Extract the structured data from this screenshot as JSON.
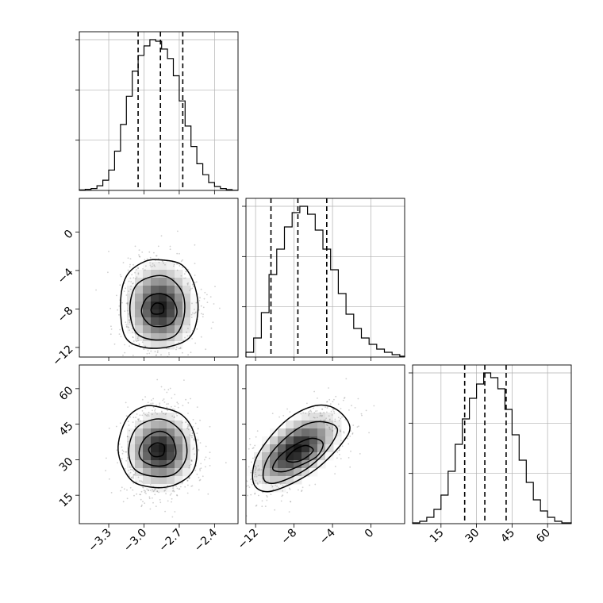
{
  "chart_data": {
    "type": "corner",
    "parameters": [
      {
        "name": "",
        "range": [
          -3.55,
          -2.2
        ],
        "ticks": [
          -3.3,
          -3.0,
          -2.7,
          -2.4
        ],
        "tick_labels": [
          "−3.3",
          "−3.0",
          "−2.7",
          "−2.4"
        ]
      },
      {
        "name": "",
        "range": [
          -13.0,
          3.5
        ],
        "ticks": [
          -12,
          -8,
          -4,
          0
        ],
        "tick_labels": [
          "−12",
          "−8",
          "−4",
          "0"
        ]
      },
      {
        "name": "",
        "range": [
          3.0,
          70.0
        ],
        "ticks": [
          15,
          30,
          45,
          60
        ],
        "tick_labels": [
          "15",
          "30",
          "45",
          "60"
        ]
      }
    ],
    "marginals": [
      {
        "parameter": 0,
        "bins": [
          -3.55,
          -3.5,
          -3.45,
          -3.4,
          -3.35,
          -3.3,
          -3.25,
          -3.2,
          -3.15,
          -3.1,
          -3.05,
          -3.0,
          -2.95,
          -2.9,
          -2.85,
          -2.8,
          -2.75,
          -2.7,
          -2.65,
          -2.6,
          -2.55,
          -2.5,
          -2.45,
          -2.4,
          -2.35,
          -2.3,
          -2.25,
          -2.2
        ],
        "counts": [
          0.3,
          0.7,
          1.2,
          3,
          6.5,
          13,
          25,
          42,
          60,
          76,
          86,
          92,
          96,
          95,
          90,
          84,
          73,
          57,
          41,
          28,
          17,
          10,
          5,
          2.5,
          1.2,
          0.5,
          0.1
        ],
        "quantiles": [
          -3.05,
          -2.86,
          -2.67
        ]
      },
      {
        "parameter": 1,
        "bins": [
          -13.0,
          -12.2,
          -11.4,
          -10.6,
          -9.8,
          -9.0,
          -8.2,
          -7.4,
          -6.6,
          -5.8,
          -5.0,
          -4.2,
          -3.4,
          -2.6,
          -1.8,
          -1.0,
          -0.2,
          0.6,
          1.4,
          2.2,
          3.0,
          3.5
        ],
        "counts": [
          3,
          12,
          28,
          52,
          68,
          82,
          91,
          95,
          90,
          80,
          68,
          55,
          40,
          27,
          18,
          12,
          8,
          5,
          3,
          1.5,
          0.5
        ],
        "quantiles": [
          -10.4,
          -7.6,
          -4.6
        ]
      },
      {
        "parameter": 2,
        "bins": [
          3,
          6,
          9,
          12,
          15,
          18,
          21,
          24,
          27,
          30,
          33,
          36,
          39,
          42,
          45,
          48,
          51,
          54,
          57,
          60,
          63,
          66,
          70
        ],
        "counts": [
          0.5,
          1.5,
          4,
          9,
          18,
          33,
          50,
          66,
          79,
          88,
          95,
          92,
          85,
          72,
          56,
          40,
          26,
          15,
          8,
          4,
          1.5,
          0.5
        ],
        "quantiles": [
          25,
          33.5,
          42.5
        ]
      }
    ],
    "joint": [
      {
        "x": 0,
        "y": 1,
        "contours": [
          {
            "level": 1,
            "points": [
              [
                -3.2,
                -7.5
              ],
              [
                -3.15,
                -4.6
              ],
              [
                -3.0,
                -3.1
              ],
              [
                -2.85,
                -2.9
              ],
              [
                -2.68,
                -3.4
              ],
              [
                -2.58,
                -5.2
              ],
              [
                -2.54,
                -8.0
              ],
              [
                -2.6,
                -10.8
              ],
              [
                -2.78,
                -11.9
              ],
              [
                -3.0,
                -12.0
              ],
              [
                -3.16,
                -10.9
              ]
            ]
          },
          {
            "level": 2,
            "points": [
              [
                -3.12,
                -8.0
              ],
              [
                -3.07,
                -5.6
              ],
              [
                -2.92,
                -4.6
              ],
              [
                -2.78,
                -4.8
              ],
              [
                -2.67,
                -6.4
              ],
              [
                -2.66,
                -8.8
              ],
              [
                -2.74,
                -10.8
              ],
              [
                -2.92,
                -11.2
              ],
              [
                -3.07,
                -10.4
              ]
            ]
          },
          {
            "level": 3,
            "points": [
              [
                -3.02,
                -8.0
              ],
              [
                -2.97,
                -6.8
              ],
              [
                -2.86,
                -6.4
              ],
              [
                -2.76,
                -7.0
              ],
              [
                -2.72,
                -8.4
              ],
              [
                -2.78,
                -9.6
              ],
              [
                -2.92,
                -9.8
              ],
              [
                -3.0,
                -9.0
              ]
            ]
          },
          {
            "level": 4,
            "points": [
              [
                -2.94,
                -8.0
              ],
              [
                -2.9,
                -7.4
              ],
              [
                -2.84,
                -7.6
              ],
              [
                -2.84,
                -8.4
              ],
              [
                -2.92,
                -8.5
              ]
            ]
          }
        ]
      },
      {
        "x": 0,
        "y": 2,
        "contours": [
          {
            "level": 1,
            "points": [
              [
                -3.22,
                34
              ],
              [
                -3.15,
                47
              ],
              [
                -3.0,
                52.5
              ],
              [
                -2.85,
                52
              ],
              [
                -2.68,
                49
              ],
              [
                -2.58,
                42
              ],
              [
                -2.55,
                32
              ],
              [
                -2.6,
                24
              ],
              [
                -2.76,
                19
              ],
              [
                -2.95,
                18.5
              ],
              [
                -3.12,
                22
              ]
            ]
          },
          {
            "level": 2,
            "points": [
              [
                -3.13,
                34
              ],
              [
                -3.07,
                43
              ],
              [
                -2.92,
                47
              ],
              [
                -2.78,
                46
              ],
              [
                -2.66,
                40
              ],
              [
                -2.64,
                31
              ],
              [
                -2.74,
                24
              ],
              [
                -2.92,
                23
              ],
              [
                -3.08,
                26
              ]
            ]
          },
          {
            "level": 3,
            "points": [
              [
                -3.04,
                34
              ],
              [
                -2.98,
                39.5
              ],
              [
                -2.86,
                42
              ],
              [
                -2.76,
                39
              ],
              [
                -2.73,
                32
              ],
              [
                -2.8,
                28
              ],
              [
                -2.92,
                27.5
              ],
              [
                -3.02,
                30
              ]
            ]
          },
          {
            "level": 4,
            "points": [
              [
                -2.96,
                34.5
              ],
              [
                -2.9,
                37
              ],
              [
                -2.83,
                36
              ],
              [
                -2.84,
                32
              ],
              [
                -2.92,
                31.5
              ]
            ]
          }
        ]
      },
      {
        "x": 1,
        "y": 2,
        "contours": [
          {
            "level": 1,
            "points": [
              [
                -12.2,
                20
              ],
              [
                -12.0,
                30
              ],
              [
                -10.2,
                41
              ],
              [
                -8.0,
                49
              ],
              [
                -5.5,
                53
              ],
              [
                -3.5,
                51
              ],
              [
                -2.2,
                44
              ],
              [
                -3.0,
                37
              ],
              [
                -5.4,
                27
              ],
              [
                -8.2,
                20
              ],
              [
                -10.8,
                16.5
              ]
            ]
          },
          {
            "level": 2,
            "points": [
              [
                -11.2,
                22.5
              ],
              [
                -10.8,
                30
              ],
              [
                -9.2,
                38
              ],
              [
                -7.0,
                44.5
              ],
              [
                -5.0,
                46
              ],
              [
                -3.5,
                43
              ],
              [
                -4.4,
                35
              ],
              [
                -6.4,
                27
              ],
              [
                -8.6,
                22
              ],
              [
                -10.4,
                20
              ]
            ]
          },
          {
            "level": 3,
            "points": [
              [
                -10.2,
                26
              ],
              [
                -9.6,
                31
              ],
              [
                -8.0,
                36
              ],
              [
                -6.2,
                39
              ],
              [
                -5.0,
                37
              ],
              [
                -5.6,
                31.5
              ],
              [
                -7.4,
                27.5
              ],
              [
                -9.0,
                25
              ]
            ]
          },
          {
            "level": 4,
            "points": [
              [
                -8.8,
                30
              ],
              [
                -8.0,
                34
              ],
              [
                -6.8,
                36
              ],
              [
                -6.0,
                34
              ],
              [
                -6.9,
                30.5
              ],
              [
                -8.0,
                29
              ]
            ]
          }
        ]
      }
    ],
    "grid": true
  }
}
